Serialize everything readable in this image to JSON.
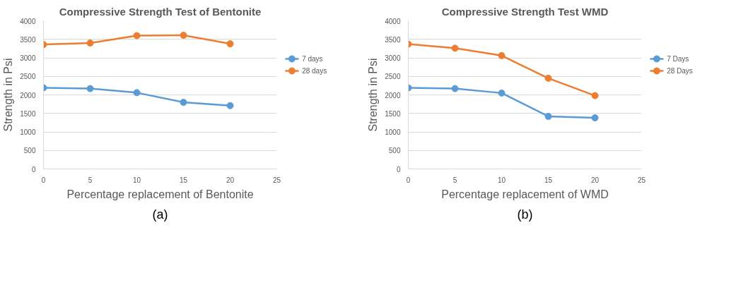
{
  "chart_data": [
    {
      "type": "line",
      "title": "Compressive Strength Test of Bentonite",
      "xlabel": "Percentage replacement of Bentonite",
      "ylabel": "Strength in Psi",
      "x": [
        0,
        5,
        10,
        15,
        20
      ],
      "series": [
        {
          "name": "7 days",
          "color": "#5b9bd5",
          "values": [
            2190,
            2170,
            2060,
            1800,
            1710
          ]
        },
        {
          "name": "28 days",
          "color": "#ed7d31",
          "values": [
            3360,
            3400,
            3600,
            3610,
            3380
          ]
        }
      ],
      "xlim": [
        0,
        25
      ],
      "xticks": [
        0,
        5,
        10,
        15,
        20,
        25
      ],
      "ylim": [
        0,
        4000
      ],
      "yticks": [
        0,
        500,
        1000,
        1500,
        2000,
        2500,
        3000,
        3500,
        4000
      ],
      "grid": "y",
      "legend": "right",
      "marker": "circle",
      "annotations": [
        "(a)"
      ]
    },
    {
      "type": "line",
      "title": "Compressive Strength Test WMD",
      "xlabel": "Percentage replacement of WMD",
      "ylabel": "Strength in Psi",
      "x": [
        0,
        5,
        10,
        15,
        20
      ],
      "series": [
        {
          "name": "7 Days",
          "color": "#5b9bd5",
          "values": [
            2190,
            2170,
            2050,
            1420,
            1380
          ]
        },
        {
          "name": "28 Days",
          "color": "#ed7d31",
          "values": [
            3370,
            3260,
            3060,
            2450,
            1980
          ]
        }
      ],
      "xlim": [
        0,
        25
      ],
      "xticks": [
        0,
        5,
        10,
        15,
        20,
        25
      ],
      "ylim": [
        0,
        4000
      ],
      "yticks": [
        0,
        500,
        1000,
        1500,
        2000,
        2500,
        3000,
        3500,
        4000
      ],
      "grid": "y",
      "legend": "right",
      "marker": "circle",
      "annotations": [
        "(b)"
      ]
    }
  ]
}
